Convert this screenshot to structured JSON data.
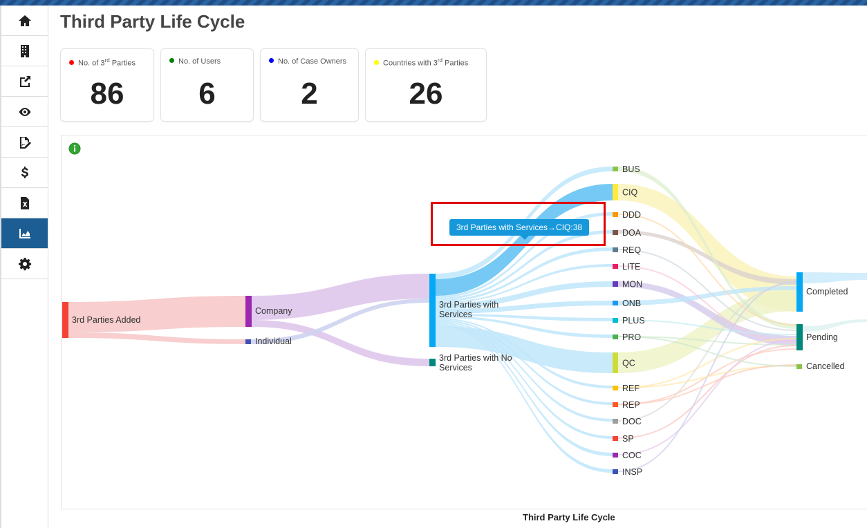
{
  "page_title": "Third Party Life Cycle",
  "sidebar": {
    "items": [
      {
        "icon": "home-icon",
        "active": false
      },
      {
        "icon": "building-icon",
        "active": false
      },
      {
        "icon": "share-icon",
        "active": false
      },
      {
        "icon": "eye-icon",
        "active": false
      },
      {
        "icon": "signature-icon",
        "active": false
      },
      {
        "icon": "dollar-icon",
        "active": false
      },
      {
        "icon": "excel-file-icon",
        "active": false
      },
      {
        "icon": "area-chart-icon",
        "active": true
      },
      {
        "icon": "gear-icon",
        "active": false
      }
    ]
  },
  "stats": [
    {
      "label_pre": "No. of 3",
      "label_sup": "rd",
      "label_post": " Parties",
      "value": "86",
      "dot_color": "#ff0000"
    },
    {
      "label_pre": "No. of Users",
      "label_sup": "",
      "label_post": "",
      "value": "6",
      "dot_color": "#008000"
    },
    {
      "label_pre": "No. of Case Owners",
      "label_sup": "",
      "label_post": "",
      "value": "2",
      "dot_color": "#0000ff"
    },
    {
      "label_pre": "Countries with 3",
      "label_sup": "rd",
      "label_post": " Parties",
      "value": "26",
      "dot_color": "#ffff00"
    }
  ],
  "tooltip": "3rd Parties with Services→CIQ:38",
  "chart_footer_title": "Third Party Life Cycle",
  "chart_data": {
    "type": "sankey",
    "nodes": [
      {
        "id": "added",
        "label": "3rd Parties Added",
        "color": "#f44336"
      },
      {
        "id": "company",
        "label": "Company",
        "color": "#9c27b0"
      },
      {
        "id": "individual",
        "label": "Individual",
        "color": "#3f51b5"
      },
      {
        "id": "services",
        "label": "3rd Parties with Services",
        "color": "#03a9f4"
      },
      {
        "id": "noservices",
        "label": "3rd Parties with No Services",
        "color": "#00897b"
      },
      {
        "id": "BUS",
        "label": "BUS",
        "color": "#8bc34a"
      },
      {
        "id": "CIQ",
        "label": "CIQ",
        "color": "#ffeb3b"
      },
      {
        "id": "DDD",
        "label": "DDD",
        "color": "#ff9800"
      },
      {
        "id": "DOA",
        "label": "DOA",
        "color": "#795548"
      },
      {
        "id": "REQ",
        "label": "REQ",
        "color": "#607d8b"
      },
      {
        "id": "LITE",
        "label": "LITE",
        "color": "#e91e63"
      },
      {
        "id": "MON",
        "label": "MON",
        "color": "#673ab7"
      },
      {
        "id": "ONB",
        "label": "ONB",
        "color": "#2196f3"
      },
      {
        "id": "PLUS",
        "label": "PLUS",
        "color": "#00bcd4"
      },
      {
        "id": "PRO",
        "label": "PRO",
        "color": "#4caf50"
      },
      {
        "id": "QC",
        "label": "QC",
        "color": "#cddc39"
      },
      {
        "id": "REF",
        "label": "REF",
        "color": "#ffc107"
      },
      {
        "id": "REP",
        "label": "REP",
        "color": "#ff5722"
      },
      {
        "id": "DOC",
        "label": "DOC",
        "color": "#9e9e9e"
      },
      {
        "id": "SP",
        "label": "SP",
        "color": "#f44336"
      },
      {
        "id": "COC",
        "label": "COC",
        "color": "#9c27b0"
      },
      {
        "id": "INSP",
        "label": "INSP",
        "color": "#3f51b5"
      },
      {
        "id": "completed",
        "label": "Completed",
        "color": "#03a9f4"
      },
      {
        "id": "pending",
        "label": "Pending",
        "color": "#00897b"
      },
      {
        "id": "cancelled",
        "label": "Cancelled",
        "color": "#8bc34a"
      }
    ],
    "links": [
      {
        "source": "added",
        "target": "company",
        "value": 80
      },
      {
        "source": "added",
        "target": "individual",
        "value": 6
      },
      {
        "source": "company",
        "target": "services",
        "value": 62
      },
      {
        "source": "company",
        "target": "noservices",
        "value": 18
      },
      {
        "source": "individual",
        "target": "services",
        "value": 6
      },
      {
        "source": "services",
        "target": "CIQ",
        "value": 38
      }
    ]
  }
}
